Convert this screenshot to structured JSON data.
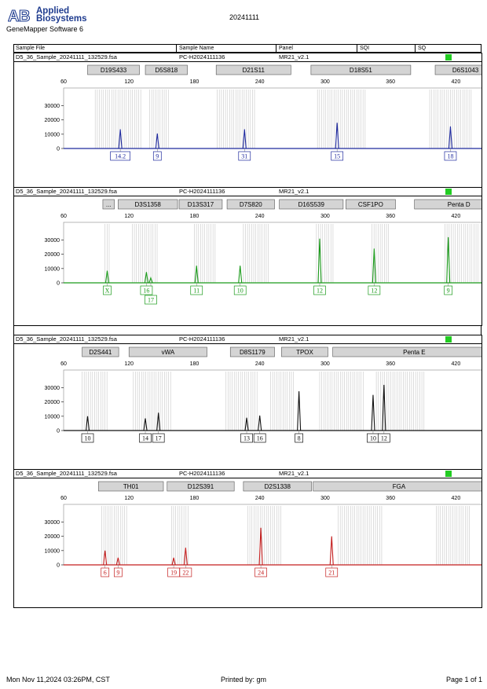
{
  "header": {
    "brand_line1": "Applied",
    "brand_line2": "Biosystems",
    "software": "GeneMapper Software 6",
    "date": "20241111"
  },
  "columns": {
    "sample_file": "Sample File",
    "sample_name": "Sample Name",
    "panel": "Panel",
    "sqi": "SQI",
    "sq": "SQ"
  },
  "footer": {
    "datetime": "Mon Nov 11,2024 03:26PM, CST",
    "printed_by": "Printed by: gm",
    "page": "Page 1 of 1"
  },
  "chart_data": [
    {
      "type": "line",
      "dye": "blue",
      "color": "#1f2a9e",
      "sample_file": "D5_36_Sample_20241111_132529.fsa",
      "sample_name": "PC-H2024111136",
      "panel": "MR21_v2.1",
      "xlim": [
        60,
        450
      ],
      "x_ticks": [
        60,
        120,
        180,
        240,
        300,
        360,
        420
      ],
      "ylim": [
        0,
        38000
      ],
      "y_ticks": [
        0,
        10000,
        20000,
        30000
      ],
      "markers": [
        {
          "label": "D19S433",
          "x0": 82,
          "x1": 131
        },
        {
          "label": "D5S818",
          "x0": 135,
          "x1": 175
        },
        {
          "label": "D21S11",
          "x0": 200,
          "x1": 270
        },
        {
          "label": "D18S51",
          "x0": 287,
          "x1": 380
        },
        {
          "label": "D6S1043",
          "x0": 401,
          "x1": 458
        }
      ],
      "bins": [
        [
          89,
          131
        ],
        [
          139,
          158
        ],
        [
          201,
          237
        ],
        [
          293,
          338
        ],
        [
          396,
          434
        ]
      ],
      "peaks": [
        {
          "x": 112,
          "height": 13500,
          "call": "14.2"
        },
        {
          "x": 146,
          "height": 10500,
          "call": "9"
        },
        {
          "x": 226,
          "height": 13500,
          "call": "31"
        },
        {
          "x": 311,
          "height": 18000,
          "call": "15"
        },
        {
          "x": 415,
          "height": 15500,
          "call": "18"
        }
      ]
    },
    {
      "type": "line",
      "dye": "green",
      "color": "#1a9a1a",
      "sample_file": "D5_36_Sample_20241111_132529.fsa",
      "sample_name": "PC-H2024111136",
      "panel": "MR21_v2.1",
      "xlim": [
        60,
        450
      ],
      "x_ticks": [
        60,
        120,
        180,
        240,
        300,
        360,
        420
      ],
      "ylim": [
        0,
        38000
      ],
      "y_ticks": [
        0,
        10000,
        20000,
        30000
      ],
      "markers": [
        {
          "label": "...",
          "x0": 96,
          "x1": 108
        },
        {
          "label": "D3S1358",
          "x0": 110,
          "x1": 166
        },
        {
          "label": "D13S317",
          "x0": 166,
          "x1": 207
        },
        {
          "label": "D7S820",
          "x0": 210,
          "x1": 255
        },
        {
          "label": "D16S539",
          "x0": 258,
          "x1": 318
        },
        {
          "label": "CSF1PO",
          "x0": 319,
          "x1": 366
        },
        {
          "label": "Penta D",
          "x0": 382,
          "x1": 465
        }
      ],
      "bins": [
        [
          98,
          103
        ],
        [
          123,
          147
        ],
        [
          180,
          200
        ],
        [
          225,
          248
        ],
        [
          292,
          308
        ],
        [
          343,
          360
        ],
        [
          410,
          448
        ]
      ],
      "peaks": [
        {
          "x": 100,
          "height": 8500,
          "call": "X"
        },
        {
          "x": 136,
          "height": 7500,
          "call": "16"
        },
        {
          "x": 140,
          "height": 3500,
          "call": "17"
        },
        {
          "x": 182,
          "height": 12000,
          "call": "11"
        },
        {
          "x": 222,
          "height": 12000,
          "call": "10"
        },
        {
          "x": 295,
          "height": 31000,
          "call": "12"
        },
        {
          "x": 345,
          "height": 24000,
          "call": "12"
        },
        {
          "x": 413,
          "height": 32000,
          "call": "9"
        }
      ]
    },
    {
      "type": "line",
      "dye": "black",
      "color": "#111111",
      "sample_file": "D5_36_Sample_20241111_132529.fsa",
      "sample_name": "PC-H2024111136",
      "panel": "MR21_v2.1",
      "xlim": [
        60,
        450
      ],
      "x_ticks": [
        60,
        120,
        180,
        240,
        300,
        360,
        420
      ],
      "ylim": [
        0,
        38000
      ],
      "y_ticks": [
        0,
        10000,
        20000,
        30000
      ],
      "markers": [
        {
          "label": "D2S441",
          "x0": 77,
          "x1": 112
        },
        {
          "label": "vWA",
          "x0": 120,
          "x1": 193
        },
        {
          "label": "D8S1179",
          "x0": 213,
          "x1": 255
        },
        {
          "label": "TPOX",
          "x0": 260,
          "x1": 304
        },
        {
          "label": "Penta E",
          "x0": 307,
          "x1": 458
        }
      ],
      "bins": [
        [
          77,
          101
        ],
        [
          124,
          160
        ],
        [
          209,
          238
        ],
        [
          250,
          272
        ],
        [
          295,
          336
        ],
        [
          347,
          392
        ]
      ],
      "peaks": [
        {
          "x": 82,
          "height": 10000,
          "call": "10"
        },
        {
          "x": 135,
          "height": 8500,
          "call": "14"
        },
        {
          "x": 147,
          "height": 12500,
          "call": "17"
        },
        {
          "x": 228,
          "height": 9000,
          "call": "13"
        },
        {
          "x": 240,
          "height": 10500,
          "call": "16"
        },
        {
          "x": 276,
          "height": 27500,
          "call": "8"
        },
        {
          "x": 344,
          "height": 25000,
          "call": "10"
        },
        {
          "x": 354,
          "height": 32000,
          "call": "12"
        }
      ]
    },
    {
      "type": "line",
      "dye": "red",
      "color": "#c41e1e",
      "sample_file": "D5_36_Sample_20241111_132529.fsa",
      "sample_name": "PC-H2024111136",
      "panel": "MR21_v2.1",
      "xlim": [
        60,
        450
      ],
      "x_ticks": [
        60,
        120,
        180,
        240,
        300,
        360,
        420
      ],
      "ylim": [
        0,
        38000
      ],
      "y_ticks": [
        0,
        10000,
        20000,
        30000
      ],
      "markers": [
        {
          "label": "TH01",
          "x0": 92,
          "x1": 153
        },
        {
          "label": "D12S391",
          "x0": 155,
          "x1": 218
        },
        {
          "label": "D2S1338",
          "x0": 225,
          "x1": 289
        },
        {
          "label": "FGA",
          "x0": 289,
          "x1": 448
        }
      ],
      "bins": [
        [
          95,
          118
        ],
        [
          159,
          176
        ],
        [
          229,
          260
        ],
        [
          312,
          352
        ],
        [
          402,
          434
        ]
      ],
      "peaks": [
        {
          "x": 98,
          "height": 10000,
          "call": "6"
        },
        {
          "x": 110,
          "height": 5000,
          "call": "9"
        },
        {
          "x": 161,
          "height": 5000,
          "call": "19"
        },
        {
          "x": 172,
          "height": 12000,
          "call": "22"
        },
        {
          "x": 241,
          "height": 26000,
          "call": "24"
        },
        {
          "x": 306,
          "height": 20000,
          "call": "21"
        }
      ]
    }
  ]
}
